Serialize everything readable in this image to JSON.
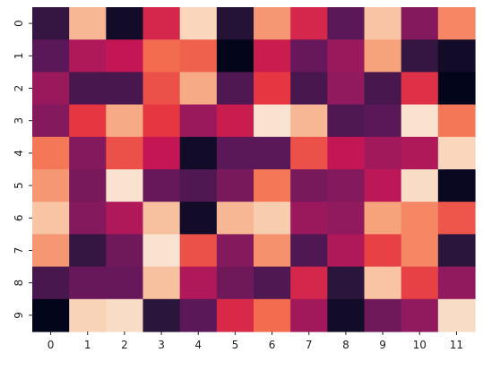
{
  "chart_data": {
    "type": "heatmap",
    "title": "",
    "xlabel": "",
    "ylabel": "",
    "colormap": "rocket",
    "x_categories": [
      "0",
      "1",
      "2",
      "3",
      "4",
      "5",
      "6",
      "7",
      "8",
      "9",
      "10",
      "11"
    ],
    "y_categories": [
      "0",
      "1",
      "2",
      "3",
      "4",
      "5",
      "6",
      "7",
      "8",
      "9"
    ],
    "values": [
      [
        0.15,
        0.85,
        0.05,
        0.55,
        0.93,
        0.1,
        0.78,
        0.55,
        0.25,
        0.88,
        0.35,
        0.75
      ],
      [
        0.25,
        0.45,
        0.5,
        0.7,
        0.68,
        0.0,
        0.52,
        0.28,
        0.4,
        0.8,
        0.15,
        0.05
      ],
      [
        0.4,
        0.2,
        0.2,
        0.65,
        0.82,
        0.22,
        0.6,
        0.2,
        0.38,
        0.2,
        0.58,
        0.0
      ],
      [
        0.35,
        0.6,
        0.82,
        0.6,
        0.4,
        0.52,
        0.97,
        0.85,
        0.22,
        0.25,
        0.97,
        0.72
      ],
      [
        0.72,
        0.35,
        0.65,
        0.5,
        0.05,
        0.25,
        0.25,
        0.65,
        0.5,
        0.42,
        0.45,
        0.93
      ],
      [
        0.78,
        0.32,
        0.97,
        0.28,
        0.22,
        0.32,
        0.72,
        0.32,
        0.35,
        0.48,
        0.95,
        0.02
      ],
      [
        0.88,
        0.35,
        0.45,
        0.87,
        0.05,
        0.85,
        0.9,
        0.4,
        0.38,
        0.8,
        0.75,
        0.66
      ],
      [
        0.78,
        0.15,
        0.3,
        0.97,
        0.65,
        0.35,
        0.77,
        0.22,
        0.45,
        0.62,
        0.75,
        0.12
      ],
      [
        0.2,
        0.28,
        0.28,
        0.87,
        0.45,
        0.3,
        0.22,
        0.55,
        0.12,
        0.88,
        0.62,
        0.38
      ],
      [
        0.0,
        0.92,
        0.95,
        0.12,
        0.25,
        0.56,
        0.7,
        0.42,
        0.05,
        0.3,
        0.38,
        0.95
      ]
    ]
  }
}
